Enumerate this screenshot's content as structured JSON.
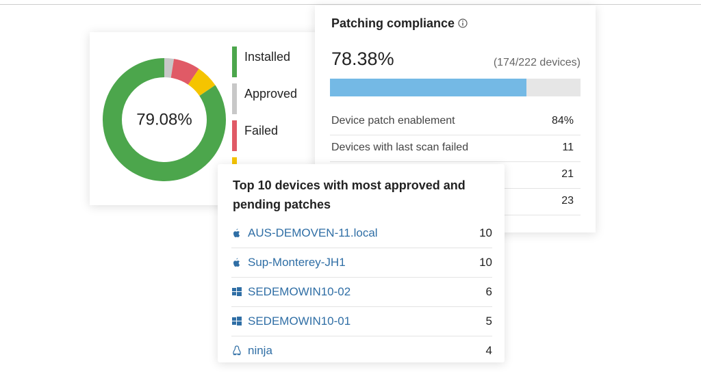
{
  "chart_data": {
    "type": "donut",
    "center_label": "79.08%",
    "categories": [
      "Installed",
      "Approved",
      "Failed",
      null
    ],
    "values": [
      84.5,
      2.5,
      7,
      6
    ],
    "colors": [
      "#4ca64c",
      "#c8c8c8",
      "#e05a66",
      "#f5c400"
    ]
  },
  "compliance_card": {
    "title": "Patching compliance",
    "percent": 78.38,
    "percent_label": "78.38%",
    "devices": "(174/222 devices)",
    "bar_color": "#74b9e5",
    "rows": [
      {
        "label": "Device patch enablement",
        "value": "84%"
      },
      {
        "label": "Devices with last scan failed",
        "value": 11
      },
      {
        "label": null,
        "value": 21
      },
      {
        "label": null,
        "value": 23
      }
    ]
  },
  "top_devices_card": {
    "title": "Top 10 devices with most approved and pending patches",
    "devices": [
      {
        "name": "AUS-DEMOVEN-11.local",
        "count": 10
      },
      {
        "name": "Sup-Monterey-JH1",
        "count": 10
      },
      {
        "name": "SEDEMOWIN10-02",
        "count": 6
      },
      {
        "name": "SEDEMOWIN10-01",
        "count": 5
      },
      {
        "name": "ninja",
        "count": 4
      }
    ]
  }
}
